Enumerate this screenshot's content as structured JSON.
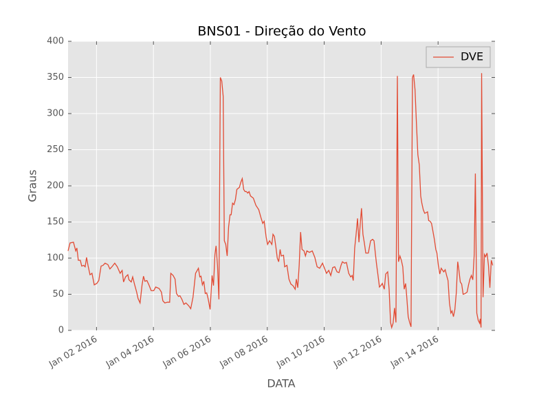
{
  "chart_data": {
    "type": "line",
    "title": "BNS01 - Direção do Vento",
    "xlabel": "DATA",
    "ylabel": "Graus",
    "x": [
      0,
      0.07,
      0.19,
      0.27,
      0.31,
      0.36,
      0.43,
      0.48,
      0.55,
      0.6,
      0.65,
      0.7,
      0.77,
      0.84,
      0.92,
      1.01,
      1.08,
      1.16,
      1.23,
      1.3,
      1.4,
      1.47,
      1.54,
      1.64,
      1.73,
      1.83,
      1.9,
      1.95,
      2.02,
      2.1,
      2.14,
      2.22,
      2.27,
      2.34,
      2.41,
      2.46,
      2.53,
      2.6,
      2.65,
      2.7,
      2.77,
      2.84,
      2.92,
      3.01,
      3.08,
      3.2,
      3.28,
      3.33,
      3.4,
      3.49,
      3.57,
      3.61,
      3.69,
      3.76,
      3.81,
      3.88,
      3.93,
      4.0,
      4.07,
      4.14,
      4.24,
      4.31,
      4.39,
      4.48,
      4.58,
      4.63,
      4.67,
      4.72,
      4.77,
      4.82,
      4.87,
      4.92,
      4.99,
      5.06,
      5.11,
      5.16,
      5.2,
      5.25,
      5.3,
      5.35,
      5.4,
      5.45,
      5.49,
      5.54,
      5.59,
      5.64,
      5.69,
      5.73,
      5.78,
      5.83,
      5.88,
      5.93,
      6.02,
      6.07,
      6.12,
      6.17,
      6.22,
      6.27,
      6.31,
      6.36,
      6.41,
      6.51,
      6.6,
      6.7,
      6.77,
      6.84,
      6.89,
      6.96,
      7.01,
      7.08,
      7.16,
      7.2,
      7.25,
      7.3,
      7.35,
      7.4,
      7.45,
      7.49,
      7.57,
      7.61,
      7.69,
      7.76,
      7.83,
      7.9,
      7.98,
      8.02,
      8.07,
      8.12,
      8.17,
      8.22,
      8.29,
      8.34,
      8.39,
      8.48,
      8.58,
      8.67,
      8.75,
      8.84,
      8.94,
      9.01,
      9.08,
      9.16,
      9.23,
      9.3,
      9.37,
      9.45,
      9.52,
      9.59,
      9.64,
      9.71,
      9.78,
      9.86,
      9.93,
      9.98,
      10.02,
      10.07,
      10.12,
      10.17,
      10.22,
      10.27,
      10.31,
      10.36,
      10.41,
      10.46,
      10.55,
      10.63,
      10.7,
      10.75,
      10.8,
      10.84,
      10.89,
      10.94,
      10.99,
      11.04,
      11.11,
      11.16,
      11.23,
      11.28,
      11.33,
      11.37,
      11.42,
      11.47,
      11.52,
      11.57,
      11.61,
      11.66,
      11.71,
      11.76,
      11.81,
      11.86,
      11.9,
      11.95,
      12.0,
      12.05,
      12.1,
      12.14,
      12.19,
      12.24,
      12.29,
      12.34,
      12.39,
      12.43,
      12.48,
      12.53,
      12.63,
      12.67,
      12.72,
      12.77,
      12.82,
      12.87,
      12.92,
      12.96,
      13.01,
      13.06,
      13.11,
      13.2,
      13.25,
      13.3,
      13.35,
      13.4,
      13.45,
      13.49,
      13.54,
      13.59,
      13.64,
      13.69,
      13.73,
      13.78,
      13.83,
      13.88,
      13.95,
      14.02,
      14.07,
      14.12,
      14.17,
      14.22,
      14.27,
      14.31,
      14.36,
      14.41,
      14.46,
      14.48,
      14.51,
      14.53,
      14.58,
      14.63,
      14.67,
      14.72,
      14.77,
      14.82,
      14.87,
      14.92
    ],
    "series": [
      {
        "name": "DVE",
        "color": "#e24a33",
        "values": [
          110,
          121,
          122,
          110,
          114,
          97,
          97,
          89,
          90,
          88,
          101,
          90,
          77,
          79,
          63,
          65,
          69,
          89,
          90,
          93,
          91,
          85,
          88,
          93,
          88,
          79,
          83,
          67,
          74,
          77,
          70,
          67,
          74,
          63,
          53,
          44,
          38,
          63,
          75,
          68,
          69,
          63,
          55,
          55,
          60,
          58,
          53,
          41,
          38,
          39,
          39,
          79,
          76,
          71,
          51,
          47,
          48,
          43,
          36,
          38,
          34,
          30,
          46,
          79,
          86,
          74,
          75,
          63,
          68,
          51,
          52,
          44,
          29,
          76,
          62,
          105,
          117,
          90,
          43,
          350,
          345,
          324,
          124,
          119,
          103,
          143,
          160,
          160,
          176,
          174,
          181,
          195,
          198,
          205,
          210,
          195,
          192,
          192,
          190,
          192,
          186,
          183,
          173,
          167,
          157,
          148,
          151,
          129,
          119,
          124,
          119,
          133,
          130,
          116,
          100,
          95,
          112,
          103,
          104,
          88,
          90,
          71,
          64,
          62,
          57,
          71,
          59,
          90,
          136,
          112,
          110,
          103,
          110,
          108,
          110,
          101,
          88,
          86,
          93,
          86,
          79,
          83,
          76,
          87,
          88,
          81,
          80,
          90,
          95,
          93,
          94,
          79,
          74,
          76,
          69,
          114,
          133,
          155,
          122,
          150,
          169,
          133,
          121,
          107,
          107,
          124,
          126,
          124,
          105,
          91,
          76,
          60,
          62,
          65,
          57,
          78,
          81,
          57,
          11,
          4,
          10,
          31,
          11,
          352,
          95,
          103,
          97,
          88,
          57,
          65,
          46,
          19,
          11,
          5,
          350,
          354,
          333,
          286,
          243,
          229,
          186,
          176,
          167,
          162,
          164,
          152,
          151,
          148,
          137,
          126,
          112,
          107,
          90,
          78,
          86,
          81,
          84,
          76,
          69,
          38,
          24,
          27,
          19,
          29,
          52,
          95,
          84,
          67,
          64,
          50,
          51,
          53,
          63,
          71,
          76,
          70,
          105,
          217,
          24,
          14,
          10,
          16,
          4,
          356,
          46,
          105,
          102,
          107,
          90,
          59,
          97,
          90
        ]
      }
    ],
    "xlim": [
      0,
      15
    ],
    "xticks": [
      {
        "value": 1,
        "label": "Jan 02 2016"
      },
      {
        "value": 3,
        "label": "Jan 04 2016"
      },
      {
        "value": 5,
        "label": "Jan 06 2016"
      },
      {
        "value": 7,
        "label": "Jan 08 2016"
      },
      {
        "value": 9,
        "label": "Jan 10 2016"
      },
      {
        "value": 11,
        "label": "Jan 12 2016"
      },
      {
        "value": 13,
        "label": "Jan 14 2016"
      }
    ],
    "ylim": [
      0,
      400
    ],
    "yticks": [
      0,
      50,
      100,
      150,
      200,
      250,
      300,
      350,
      400
    ],
    "grid": true,
    "legend": "upper right"
  }
}
